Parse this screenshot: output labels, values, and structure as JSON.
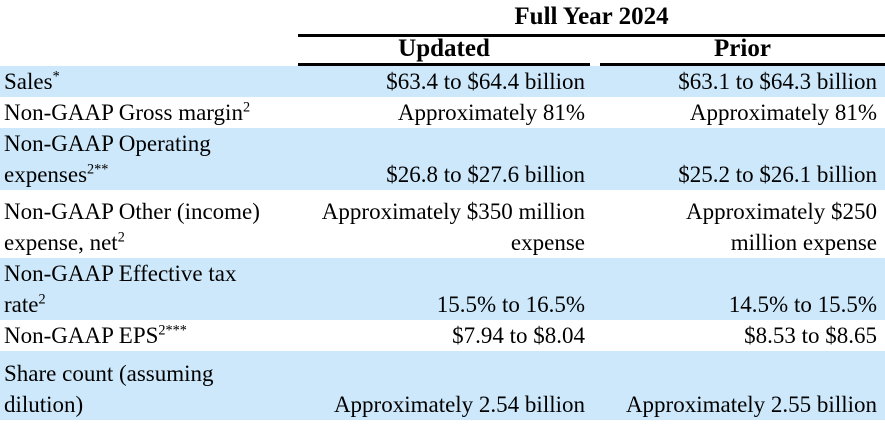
{
  "table": {
    "col_group_header": "Full Year 2024",
    "col_headers": {
      "updated": "Updated",
      "prior": "Prior"
    },
    "colors": {
      "row_stripe": "#cde8fa",
      "text": "#000000",
      "rule": "#000000",
      "background": "#ffffff"
    },
    "rows": [
      {
        "label": "Sales",
        "sup": "*",
        "updated": "$63.4 to $64.4 billion",
        "prior": "$63.1 to $64.3 billion"
      },
      {
        "label": "Non-GAAP Gross margin",
        "sup": "2",
        "updated": "Approximately 81%",
        "prior": "Approximately 81%"
      },
      {
        "label": "Non-GAAP Operating\nexpenses",
        "sup": "2**",
        "updated": "$26.8 to $27.6 billion",
        "prior": "$25.2 to $26.1 billion"
      },
      {
        "label": "Non-GAAP Other (income)\nexpense, net",
        "sup": "2",
        "updated": "Approximately $350 million\nexpense",
        "prior": "Approximately $250\nmillion expense"
      },
      {
        "label": "Non-GAAP Effective tax\nrate",
        "sup": "2",
        "updated": "15.5% to 16.5%",
        "prior": "14.5% to 15.5%"
      },
      {
        "label": "Non-GAAP EPS",
        "sup": "2***",
        "updated": "$7.94 to $8.04",
        "prior": "$8.53 to $8.65"
      },
      {
        "label": "Share count (assuming\ndilution)",
        "sup": "",
        "updated": "Approximately 2.54 billion",
        "prior": "Approximately 2.55 billion"
      }
    ]
  }
}
